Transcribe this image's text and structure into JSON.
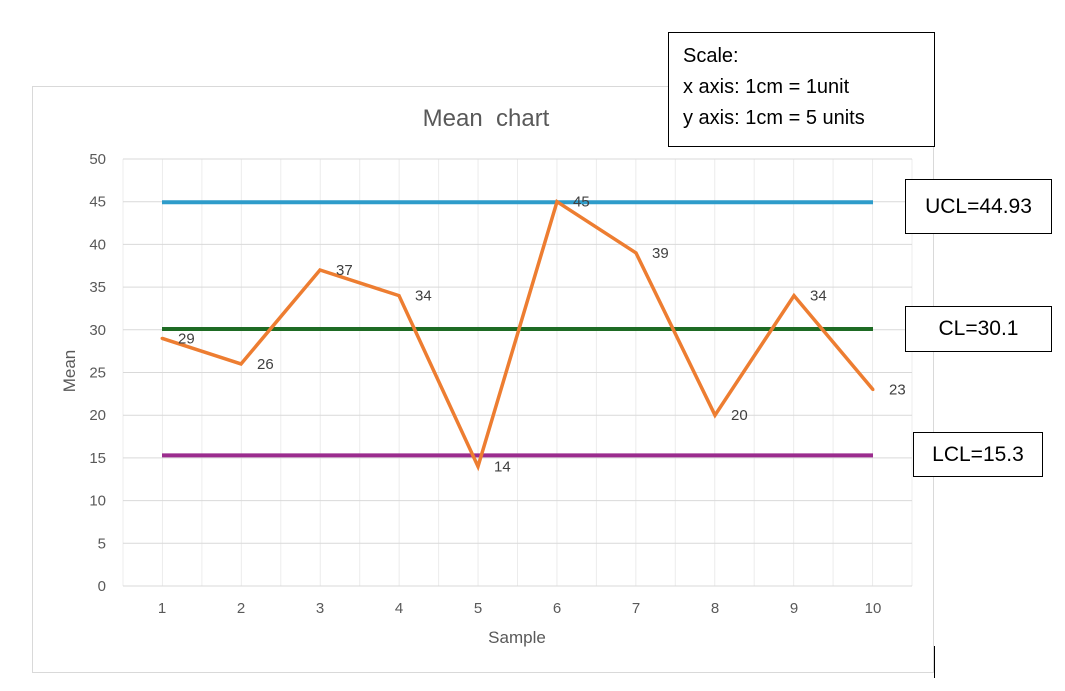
{
  "chart_data": {
    "type": "line",
    "title": "Mean  chart",
    "xlabel": "Sample",
    "ylabel": "Mean",
    "x": [
      1,
      2,
      3,
      4,
      5,
      6,
      7,
      8,
      9,
      10
    ],
    "x_tick_labels": [
      "1",
      "2",
      "3",
      "4",
      "5",
      "6",
      "7",
      "8",
      "9",
      "10"
    ],
    "y_tick_labels": [
      "0",
      "5",
      "10",
      "15",
      "20",
      "25",
      "30",
      "35",
      "40",
      "45",
      "50"
    ],
    "ylim": [
      0,
      50
    ],
    "grid": true,
    "legend": "none",
    "series": [
      {
        "values": [
          29,
          26,
          37,
          34,
          14,
          45,
          39,
          20,
          34,
          23
        ],
        "data_labels": [
          "29",
          "26",
          "37",
          "34",
          "14",
          "45",
          "39",
          "20",
          "34",
          "23"
        ],
        "color": "#ED7D31"
      }
    ],
    "control_lines": [
      {
        "key": "ucl",
        "value": 44.93,
        "color": "#2E9CCA"
      },
      {
        "key": "cl",
        "value": 30.1,
        "color": "#1E6B24"
      },
      {
        "key": "lcl",
        "value": 15.3,
        "color": "#9B2C8E"
      }
    ]
  },
  "annotations": {
    "scale": {
      "line1": "Scale:",
      "line2": "x axis: 1cm = 1unit",
      "line3": "y axis: 1cm = 5 units"
    },
    "ucl_label": "UCL=44.93",
    "cl_label": "CL=30.1",
    "lcl_label": "LCL=15.3"
  }
}
